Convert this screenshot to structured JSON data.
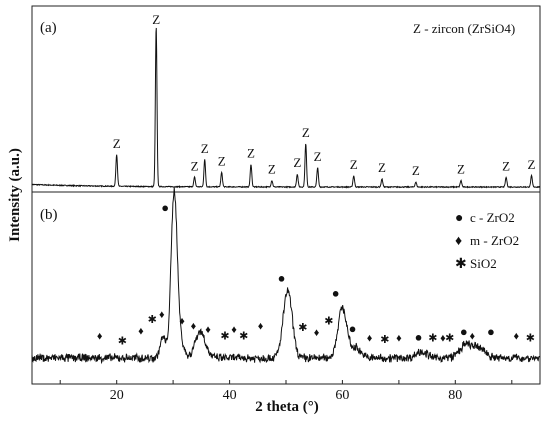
{
  "chart_data": {
    "type": "line",
    "xlabel": "2 theta (°)",
    "ylabel": "Intensity (a.u.)",
    "xlim": [
      5,
      95
    ],
    "x_ticks": [
      20,
      40,
      60,
      80
    ],
    "grid": false,
    "panels": [
      {
        "label": "(a)",
        "legend": "Z - zircon (ZrSiO4)",
        "legend_placement": "top-right",
        "peak_marker": "Z",
        "peaks": [
          {
            "x": 20.0,
            "h": 0.2
          },
          {
            "x": 27.0,
            "h": 1.0
          },
          {
            "x": 33.8,
            "h": 0.06
          },
          {
            "x": 35.6,
            "h": 0.17
          },
          {
            "x": 38.6,
            "h": 0.09
          },
          {
            "x": 43.8,
            "h": 0.14
          },
          {
            "x": 47.5,
            "h": 0.04
          },
          {
            "x": 52.0,
            "h": 0.08
          },
          {
            "x": 53.5,
            "h": 0.27
          },
          {
            "x": 55.6,
            "h": 0.12
          },
          {
            "x": 62.0,
            "h": 0.07
          },
          {
            "x": 67.0,
            "h": 0.05
          },
          {
            "x": 73.0,
            "h": 0.03
          },
          {
            "x": 81.0,
            "h": 0.04
          },
          {
            "x": 89.0,
            "h": 0.06
          },
          {
            "x": 93.5,
            "h": 0.07
          }
        ]
      },
      {
        "label": "(b)",
        "legend": [
          {
            "symbol": "●",
            "name": "c - ZrO2"
          },
          {
            "symbol": "♦",
            "name": "m - ZrO2"
          },
          {
            "symbol": "✱",
            "name": "SiO2"
          }
        ],
        "legend_placement": "top-right",
        "peaks": [
          {
            "x": 30.2,
            "h": 1.0,
            "w": 0.55
          },
          {
            "x": 28.2,
            "h": 0.12,
            "w": 0.5
          },
          {
            "x": 31.5,
            "h": 0.08,
            "w": 0.5
          },
          {
            "x": 34.8,
            "h": 0.16,
            "w": 0.9
          },
          {
            "x": 50.3,
            "h": 0.4,
            "w": 0.8
          },
          {
            "x": 60.0,
            "h": 0.3,
            "w": 0.8
          },
          {
            "x": 62.5,
            "h": 0.06,
            "w": 0.8
          },
          {
            "x": 74.0,
            "h": 0.04,
            "w": 0.9
          },
          {
            "x": 82.0,
            "h": 0.08,
            "w": 1.2
          },
          {
            "x": 84.5,
            "h": 0.05,
            "w": 1.0
          }
        ],
        "markers": [
          {
            "x": 28.6,
            "type": "c",
            "h": 1.0
          },
          {
            "x": 49.2,
            "type": "c",
            "h": 0.39
          },
          {
            "x": 58.8,
            "type": "c",
            "h": 0.3
          },
          {
            "x": 61.8,
            "type": "c",
            "h": 0.09
          },
          {
            "x": 73.5,
            "type": "c",
            "h": 0.04
          },
          {
            "x": 81.5,
            "type": "c",
            "h": 0.07
          },
          {
            "x": 86.3,
            "type": "c",
            "h": 0.07
          },
          {
            "x": 17.0,
            "type": "m",
            "h": 0.05
          },
          {
            "x": 24.3,
            "type": "m",
            "h": 0.08
          },
          {
            "x": 28.0,
            "type": "m",
            "h": 0.18
          },
          {
            "x": 31.6,
            "type": "m",
            "h": 0.14
          },
          {
            "x": 33.6,
            "type": "m",
            "h": 0.11
          },
          {
            "x": 36.2,
            "type": "m",
            "h": 0.09
          },
          {
            "x": 40.8,
            "type": "m",
            "h": 0.09
          },
          {
            "x": 45.5,
            "type": "m",
            "h": 0.11
          },
          {
            "x": 55.4,
            "type": "m",
            "h": 0.07
          },
          {
            "x": 64.8,
            "type": "m",
            "h": 0.04
          },
          {
            "x": 70.0,
            "type": "m",
            "h": 0.04
          },
          {
            "x": 77.8,
            "type": "m",
            "h": 0.04
          },
          {
            "x": 83.0,
            "type": "m",
            "h": 0.05
          },
          {
            "x": 90.8,
            "type": "m",
            "h": 0.05
          },
          {
            "x": 21.0,
            "type": "s",
            "h": 0.02
          },
          {
            "x": 26.3,
            "type": "s",
            "h": 0.15
          },
          {
            "x": 39.2,
            "type": "s",
            "h": 0.05
          },
          {
            "x": 42.5,
            "type": "s",
            "h": 0.05
          },
          {
            "x": 53.0,
            "type": "s",
            "h": 0.1
          },
          {
            "x": 57.6,
            "type": "s",
            "h": 0.14
          },
          {
            "x": 67.5,
            "type": "s",
            "h": 0.03
          },
          {
            "x": 76.0,
            "type": "s",
            "h": 0.04
          },
          {
            "x": 79.0,
            "type": "s",
            "h": 0.04
          },
          {
            "x": 93.3,
            "type": "s",
            "h": 0.04
          }
        ]
      }
    ]
  }
}
